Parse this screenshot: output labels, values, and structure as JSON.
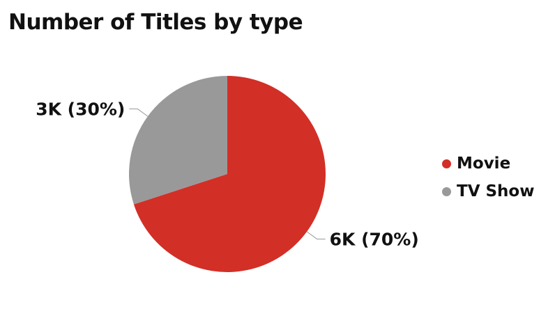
{
  "chart_data": {
    "type": "pie",
    "title": "Number of Titles by type",
    "categories": [
      "Movie",
      "TV Show"
    ],
    "values": [
      70,
      30
    ],
    "data_labels": [
      "6K (70%)",
      "3K (30%)"
    ],
    "colors": [
      "#d22f27",
      "#999999"
    ],
    "legend_position": "right",
    "start_angle_deg": 0,
    "direction": "clockwise"
  }
}
